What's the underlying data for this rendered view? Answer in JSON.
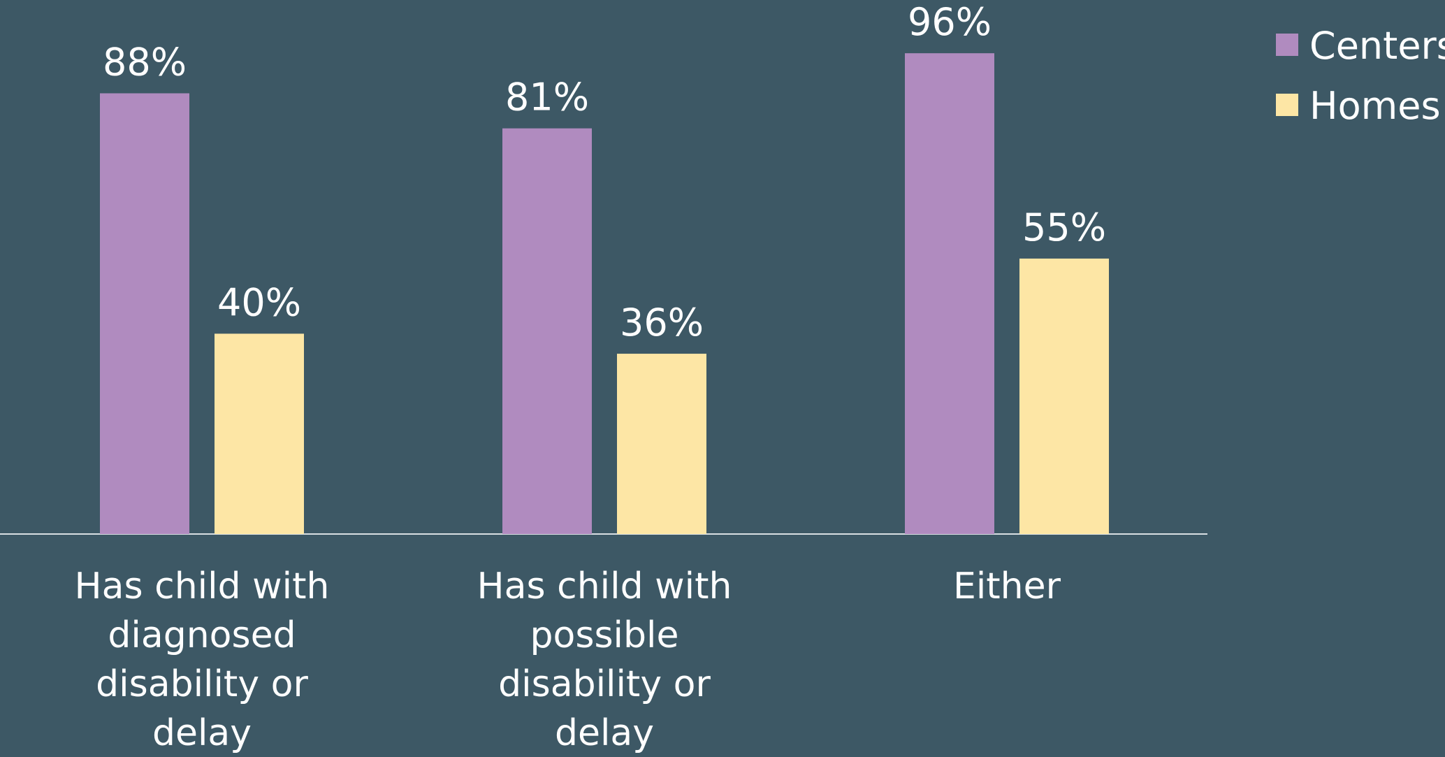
{
  "colors": {
    "background": "#3d5865",
    "centers": "#b08bbf",
    "homes": "#fde6a5",
    "axis": "#d9dfe3",
    "text": "#ffffff"
  },
  "chart_data": {
    "type": "bar",
    "categories": [
      [
        "Has child with",
        "diagnosed",
        "disability or",
        "delay"
      ],
      [
        "Has child with",
        "possible",
        "disability or",
        "delay"
      ],
      [
        "Either"
      ]
    ],
    "series": [
      {
        "name": "Centers",
        "values": [
          88,
          81,
          96
        ],
        "value_labels": [
          "88%",
          "81%",
          "96%"
        ]
      },
      {
        "name": "Homes",
        "values": [
          40,
          36,
          55
        ],
        "value_labels": [
          "40%",
          "36%",
          "55%"
        ]
      }
    ],
    "ylim": [
      0,
      100
    ],
    "grid": false,
    "legend_position": "top-right"
  }
}
